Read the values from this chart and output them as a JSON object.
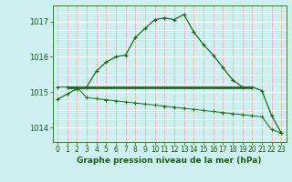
{
  "title": "Graphe pression niveau de la mer (hPa)",
  "bg_color": "#cff0f0",
  "line_color": "#1a6b1a",
  "xlim": [
    -0.5,
    23.5
  ],
  "ylim": [
    1013.6,
    1017.45
  ],
  "yticks": [
    1014,
    1015,
    1016,
    1017
  ],
  "xticks": [
    0,
    1,
    2,
    3,
    4,
    5,
    6,
    7,
    8,
    9,
    10,
    11,
    12,
    13,
    14,
    15,
    16,
    17,
    18,
    19,
    20,
    21,
    22,
    23
  ],
  "curve1_x": [
    0,
    1,
    2,
    3,
    4,
    5,
    6,
    7,
    8,
    9,
    10,
    11,
    12,
    13,
    14,
    15,
    16,
    17,
    18,
    19,
    20,
    21,
    22,
    23
  ],
  "curve1_y": [
    1014.8,
    1014.95,
    1015.1,
    1015.15,
    1015.6,
    1015.85,
    1016.0,
    1016.05,
    1016.55,
    1016.8,
    1017.05,
    1017.1,
    1017.05,
    1017.2,
    1016.7,
    1016.35,
    1016.05,
    1015.7,
    1015.35,
    1015.15,
    1015.15,
    1015.05,
    1014.35,
    1013.85
  ],
  "curve2_x": [
    0,
    1,
    2,
    3,
    4,
    5,
    6,
    7,
    8,
    9,
    10,
    11,
    12,
    13,
    14,
    15,
    16,
    17,
    18,
    19,
    20,
    21,
    22,
    23
  ],
  "curve2_y": [
    1015.15,
    1015.15,
    1015.15,
    1014.85,
    1014.82,
    1014.79,
    1014.76,
    1014.73,
    1014.7,
    1014.67,
    1014.64,
    1014.61,
    1014.58,
    1014.55,
    1014.52,
    1014.49,
    1014.46,
    1014.43,
    1014.4,
    1014.37,
    1014.34,
    1014.31,
    1013.95,
    1013.85
  ],
  "hline_y": 1015.15,
  "hline_x_start": 1,
  "hline_x_end": 20,
  "xlabel_fontsize": 6.5,
  "tick_fontsize": 5.5,
  "ytick_fontsize": 6.0
}
